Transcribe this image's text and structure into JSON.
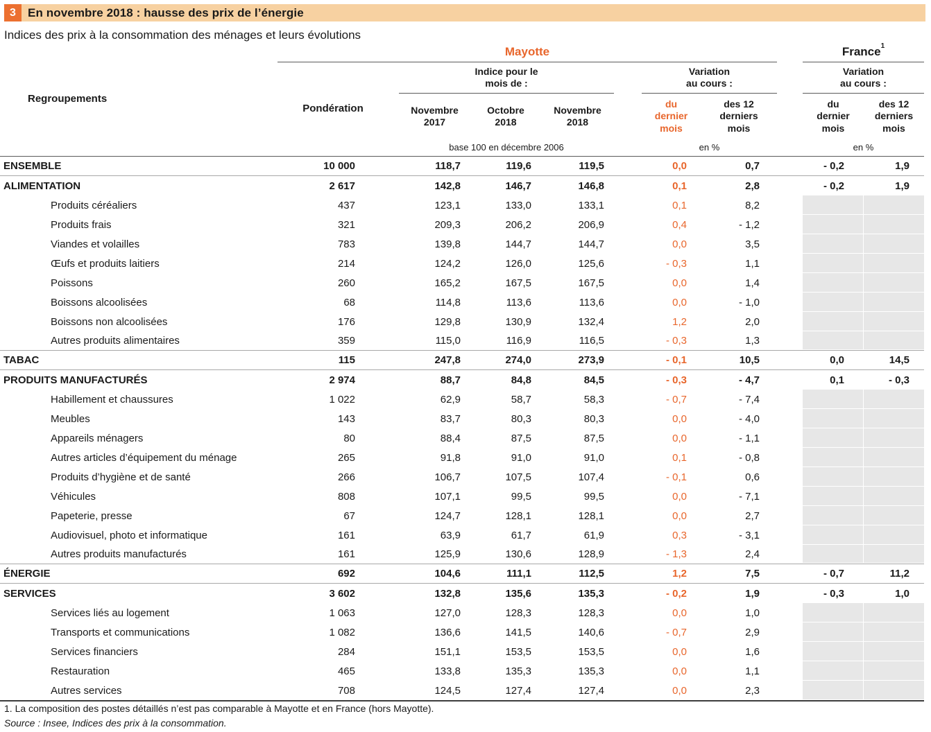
{
  "title": {
    "number": "3",
    "text": "En novembre 2018 : hausse des prix de l’énergie"
  },
  "subtitle": "Indices des prix à la consommation des ménages et leurs évolutions",
  "colors": {
    "accent_orange": "#e8662c",
    "title_band_bg": "#f7d1a1",
    "title_box_bg": "#ec7030",
    "grey_cell": "#e7e7e7",
    "text": "#1a1a1a"
  },
  "header": {
    "groups": {
      "mayotte": "Mayotte",
      "france": "France",
      "france_footnote_ref": "1",
      "indice": "Indice pour le\nmois de :",
      "variation": "Variation\nau cours :"
    },
    "columns": {
      "regroupements": "Regroupements",
      "ponderation": "Pondération",
      "month_nov_2017": "Novembre\n2017",
      "month_oct_2018": "Octobre\n2018",
      "month_nov_2018": "Novembre\n2018",
      "var_last_month": "du\ndernier\nmois",
      "var_12_months": "des 12\nderniers\nmois"
    },
    "units": {
      "base": "base 100 en décembre 2006",
      "pct": "en %"
    }
  },
  "rows": [
    {
      "label": "ENSEMBLE",
      "bold": true,
      "pond": "10 000",
      "m": [
        "118,7",
        "119,6",
        "119,5"
      ],
      "v": [
        "0,0",
        "0,7"
      ],
      "f": [
        "- 0,2",
        "1,9"
      ],
      "sep": true
    },
    {
      "label": "ALIMENTATION",
      "bold": true,
      "pond": "2 617",
      "m": [
        "142,8",
        "146,7",
        "146,8"
      ],
      "v": [
        "0,1",
        "2,8"
      ],
      "f": [
        "- 0,2",
        "1,9"
      ]
    },
    {
      "label": "Produits céréaliers",
      "pond": "437",
      "m": [
        "123,1",
        "133,0",
        "133,1"
      ],
      "v": [
        "0,1",
        "8,2"
      ],
      "f": null
    },
    {
      "label": "Produits frais",
      "pond": "321",
      "m": [
        "209,3",
        "206,2",
        "206,9"
      ],
      "v": [
        "0,4",
        "- 1,2"
      ],
      "f": null
    },
    {
      "label": "Viandes et volailles",
      "pond": "783",
      "m": [
        "139,8",
        "144,7",
        "144,7"
      ],
      "v": [
        "0,0",
        "3,5"
      ],
      "f": null
    },
    {
      "label": "Œufs et produits laitiers",
      "pond": "214",
      "m": [
        "124,2",
        "126,0",
        "125,6"
      ],
      "v": [
        "- 0,3",
        "1,1"
      ],
      "f": null
    },
    {
      "label": "Poissons",
      "pond": "260",
      "m": [
        "165,2",
        "167,5",
        "167,5"
      ],
      "v": [
        "0,0",
        "1,4"
      ],
      "f": null
    },
    {
      "label": "Boissons alcoolisées",
      "pond": "68",
      "m": [
        "114,8",
        "113,6",
        "113,6"
      ],
      "v": [
        "0,0",
        "- 1,0"
      ],
      "f": null
    },
    {
      "label": "Boissons non alcoolisées",
      "pond": "176",
      "m": [
        "129,8",
        "130,9",
        "132,4"
      ],
      "v": [
        "1,2",
        "2,0"
      ],
      "f": null
    },
    {
      "label": "Autres produits alimentaires",
      "pond": "359",
      "m": [
        "115,0",
        "116,9",
        "116,5"
      ],
      "v": [
        "- 0,3",
        "1,3"
      ],
      "f": null,
      "sep": true
    },
    {
      "label": "TABAC",
      "bold": true,
      "pond": "115",
      "m": [
        "247,8",
        "274,0",
        "273,9"
      ],
      "v": [
        "- 0,1",
        "10,5"
      ],
      "f": [
        "0,0",
        "14,5"
      ],
      "sep": true
    },
    {
      "label": "PRODUITS MANUFACTURÉS",
      "bold": true,
      "pond": "2 974",
      "m": [
        "88,7",
        "84,8",
        "84,5"
      ],
      "v": [
        "- 0,3",
        "- 4,7"
      ],
      "f": [
        "0,1",
        "- 0,3"
      ]
    },
    {
      "label": "Habillement et chaussures",
      "pond": "1 022",
      "m": [
        "62,9",
        "58,7",
        "58,3"
      ],
      "v": [
        "- 0,7",
        "- 7,4"
      ],
      "f": null
    },
    {
      "label": "Meubles",
      "pond": "143",
      "m": [
        "83,7",
        "80,3",
        "80,3"
      ],
      "v": [
        "0,0",
        "- 4,0"
      ],
      "f": null
    },
    {
      "label": "Appareils ménagers",
      "pond": "80",
      "m": [
        "88,4",
        "87,5",
        "87,5"
      ],
      "v": [
        "0,0",
        "- 1,1"
      ],
      "f": null
    },
    {
      "label": "Autres articles d’équipement du ménage",
      "pond": "265",
      "m": [
        "91,8",
        "91,0",
        "91,0"
      ],
      "v": [
        "0,1",
        "- 0,8"
      ],
      "f": null
    },
    {
      "label": "Produits d’hygiène et de santé",
      "pond": "266",
      "m": [
        "106,7",
        "107,5",
        "107,4"
      ],
      "v": [
        "- 0,1",
        "0,6"
      ],
      "f": null
    },
    {
      "label": "Véhicules",
      "pond": "808",
      "m": [
        "107,1",
        "99,5",
        "99,5"
      ],
      "v": [
        "0,0",
        "- 7,1"
      ],
      "f": null
    },
    {
      "label": "Papeterie, presse",
      "pond": "67",
      "m": [
        "124,7",
        "128,1",
        "128,1"
      ],
      "v": [
        "0,0",
        "2,7"
      ],
      "f": null
    },
    {
      "label": "Audiovisuel, photo et informatique",
      "pond": "161",
      "m": [
        "63,9",
        "61,7",
        "61,9"
      ],
      "v": [
        "0,3",
        "- 3,1"
      ],
      "f": null
    },
    {
      "label": "Autres produits manufacturés",
      "pond": "161",
      "m": [
        "125,9",
        "130,6",
        "128,9"
      ],
      "v": [
        "- 1,3",
        "2,4"
      ],
      "f": null,
      "sep": true
    },
    {
      "label": "ÉNERGIE",
      "bold": true,
      "pond": "692",
      "m": [
        "104,6",
        "111,1",
        "112,5"
      ],
      "v": [
        "1,2",
        "7,5"
      ],
      "f": [
        "- 0,7",
        "11,2"
      ],
      "sep": true
    },
    {
      "label": "SERVICES",
      "bold": true,
      "pond": "3 602",
      "m": [
        "132,8",
        "135,6",
        "135,3"
      ],
      "v": [
        "- 0,2",
        "1,9"
      ],
      "f": [
        "- 0,3",
        "1,0"
      ]
    },
    {
      "label": "Services liés au logement",
      "pond": "1 063",
      "m": [
        "127,0",
        "128,3",
        "128,3"
      ],
      "v": [
        "0,0",
        "1,0"
      ],
      "f": null
    },
    {
      "label": "Transports et communications",
      "pond": "1 082",
      "m": [
        "136,6",
        "141,5",
        "140,6"
      ],
      "v": [
        "- 0,7",
        "2,9"
      ],
      "f": null
    },
    {
      "label": "Services financiers",
      "pond": "284",
      "m": [
        "151,1",
        "153,5",
        "153,5"
      ],
      "v": [
        "0,0",
        "1,6"
      ],
      "f": null
    },
    {
      "label": "Restauration",
      "pond": "465",
      "m": [
        "133,8",
        "135,3",
        "135,3"
      ],
      "v": [
        "0,0",
        "1,1"
      ],
      "f": null
    },
    {
      "label": "Autres services",
      "pond": "708",
      "m": [
        "124,5",
        "127,4",
        "127,4"
      ],
      "v": [
        "0,0",
        "2,3"
      ],
      "f": null
    }
  ],
  "footnotes": [
    "1. La composition des postes détaillés n’est pas comparable à Mayotte et en France (hors Mayotte).",
    "Source : Insee, Indices des prix à la consommation."
  ]
}
